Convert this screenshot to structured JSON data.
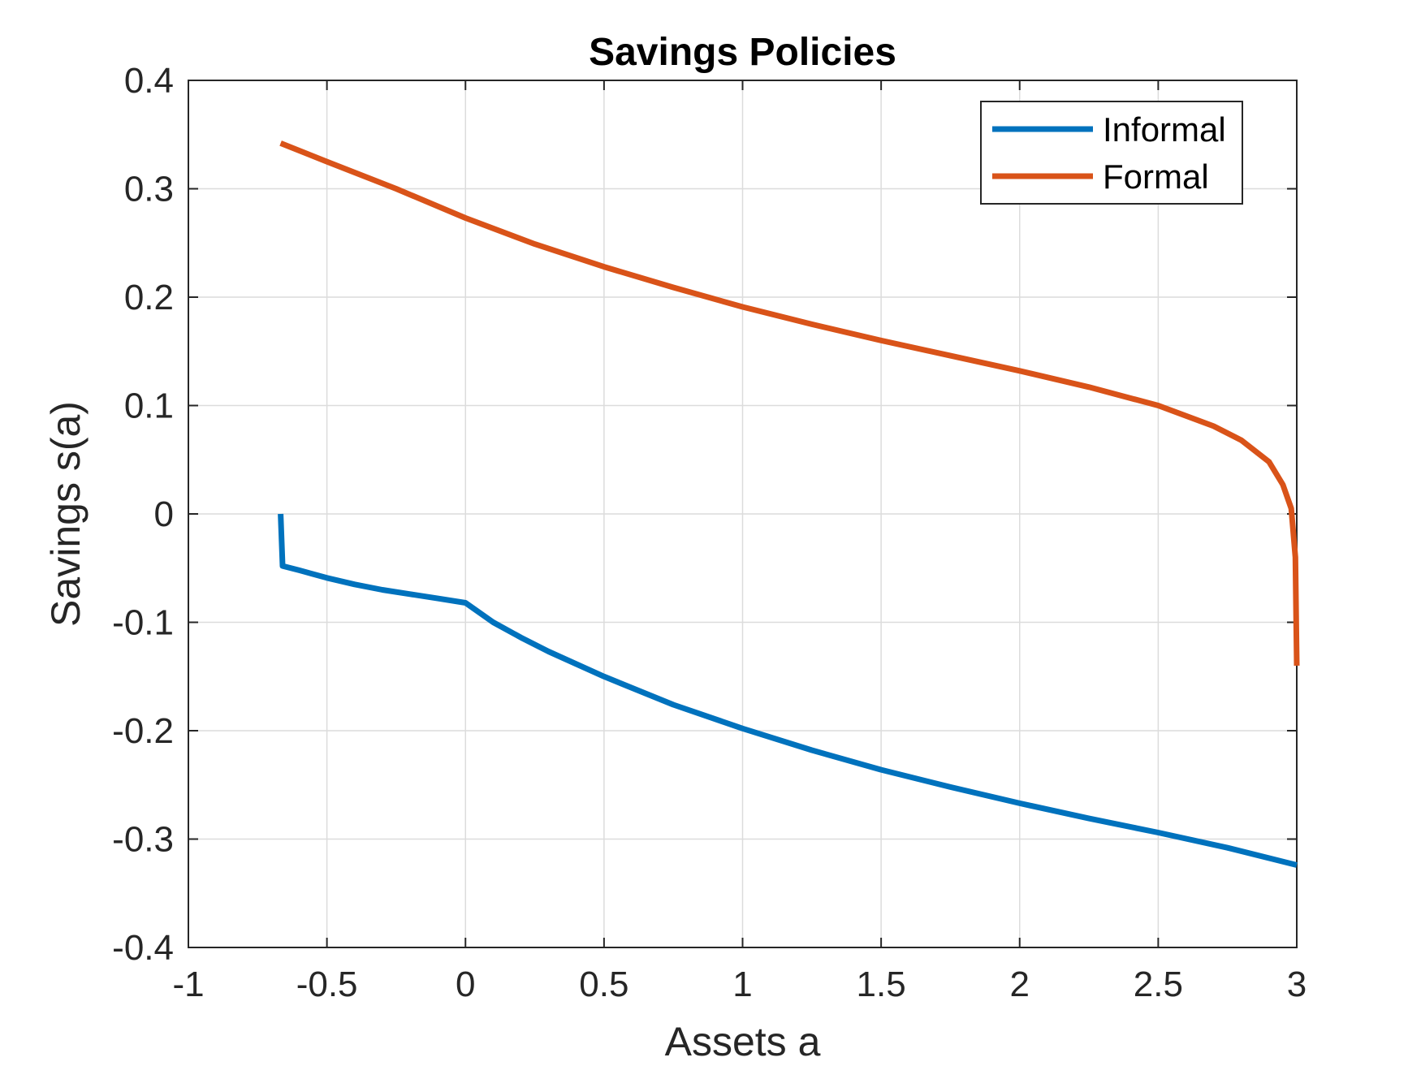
{
  "chart_data": {
    "type": "line",
    "title": "Savings Policies",
    "xlabel": "Assets a",
    "ylabel": "Savings s(a)",
    "xlim": [
      -1,
      3
    ],
    "ylim": [
      -0.4,
      0.4
    ],
    "xticks": [
      -1,
      -0.5,
      0,
      0.5,
      1,
      1.5,
      2,
      2.5,
      3
    ],
    "xtick_labels": [
      "-1",
      "-0.5",
      "0",
      "0.5",
      "1",
      "1.5",
      "2",
      "2.5",
      "3"
    ],
    "yticks": [
      -0.4,
      -0.3,
      -0.2,
      -0.1,
      0,
      0.1,
      0.2,
      0.3,
      0.4
    ],
    "ytick_labels": [
      "-0.4",
      "-0.3",
      "-0.2",
      "-0.1",
      "0",
      "0.1",
      "0.2",
      "0.3",
      "0.4"
    ],
    "grid": true,
    "legend_position": "top-right",
    "series": [
      {
        "name": "Informal",
        "color": "#0072BD",
        "x": [
          -0.667,
          -0.66,
          -0.6,
          -0.5,
          -0.4,
          -0.3,
          -0.2,
          -0.1,
          0,
          0.1,
          0.2,
          0.3,
          0.5,
          0.75,
          1,
          1.25,
          1.5,
          1.75,
          2,
          2.25,
          2.5,
          2.75,
          3
        ],
        "y": [
          0,
          -0.048,
          -0.052,
          -0.059,
          -0.065,
          -0.07,
          -0.074,
          -0.078,
          -0.082,
          -0.1,
          -0.114,
          -0.127,
          -0.15,
          -0.176,
          -0.198,
          -0.218,
          -0.236,
          -0.252,
          -0.267,
          -0.281,
          -0.294,
          -0.308,
          -0.324
        ]
      },
      {
        "name": "Formal",
        "color": "#D95319",
        "x": [
          -0.667,
          -0.5,
          -0.25,
          0,
          0.25,
          0.5,
          0.75,
          1,
          1.25,
          1.5,
          1.75,
          2,
          2.25,
          2.5,
          2.7,
          2.8,
          2.9,
          2.95,
          2.98,
          2.995,
          3
        ],
        "y": [
          0.342,
          0.325,
          0.3,
          0.273,
          0.249,
          0.228,
          0.209,
          0.191,
          0.175,
          0.16,
          0.146,
          0.132,
          0.117,
          0.1,
          0.081,
          0.068,
          0.048,
          0.027,
          0.005,
          -0.04,
          -0.14
        ]
      }
    ]
  }
}
